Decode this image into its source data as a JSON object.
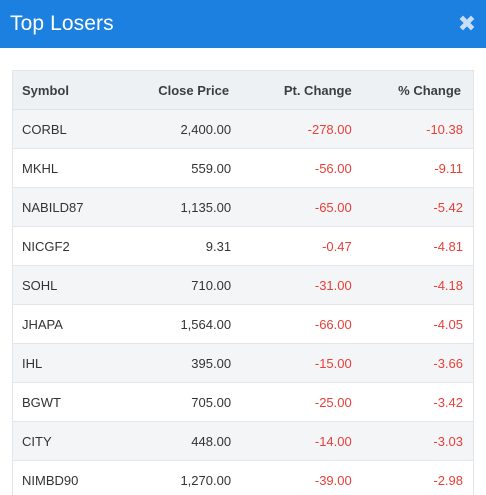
{
  "modal": {
    "title": "Top Losers",
    "close_glyph": "✖",
    "close_icon": "close-icon"
  },
  "table": {
    "headers": {
      "symbol": "Symbol",
      "close_price": "Close Price",
      "pt_change": "Pt. Change",
      "pct_change": "% Change"
    },
    "rows": [
      {
        "symbol": "CORBL",
        "close_price": "2,400.00",
        "pt_change": "-278.00",
        "pct_change": "-10.38"
      },
      {
        "symbol": "MKHL",
        "close_price": "559.00",
        "pt_change": "-56.00",
        "pct_change": "-9.11"
      },
      {
        "symbol": "NABILD87",
        "close_price": "1,135.00",
        "pt_change": "-65.00",
        "pct_change": "-5.42"
      },
      {
        "symbol": "NICGF2",
        "close_price": "9.31",
        "pt_change": "-0.47",
        "pct_change": "-4.81"
      },
      {
        "symbol": "SOHL",
        "close_price": "710.00",
        "pt_change": "-31.00",
        "pct_change": "-4.18"
      },
      {
        "symbol": "JHAPA",
        "close_price": "1,564.00",
        "pt_change": "-66.00",
        "pct_change": "-4.05"
      },
      {
        "symbol": "IHL",
        "close_price": "395.00",
        "pt_change": "-15.00",
        "pct_change": "-3.66"
      },
      {
        "symbol": "BGWT",
        "close_price": "705.00",
        "pt_change": "-25.00",
        "pct_change": "-3.42"
      },
      {
        "symbol": "CITY",
        "close_price": "448.00",
        "pt_change": "-14.00",
        "pct_change": "-3.03"
      },
      {
        "symbol": "NIMBD90",
        "close_price": "1,270.00",
        "pt_change": "-39.00",
        "pct_change": "-2.98"
      }
    ]
  },
  "colors": {
    "header_bg": "#1b80e0",
    "negative": "#e8403a"
  }
}
